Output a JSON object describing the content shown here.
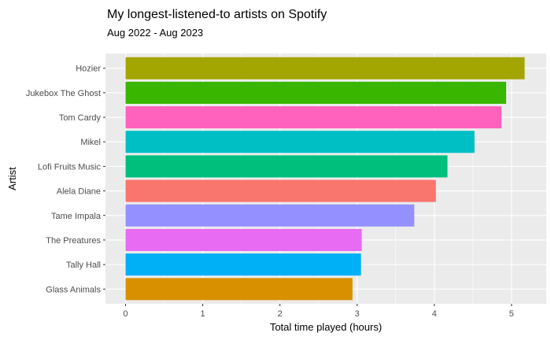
{
  "chart_data": {
    "type": "bar",
    "orientation": "horizontal",
    "title": "My longest-listened-to artists on Spotify",
    "subtitle": "Aug 2022 - Aug 2023",
    "xlabel": "Total time played (hours)",
    "ylabel": "Artist",
    "xlim": [
      -0.26,
      5.45
    ],
    "xticks": [
      "0",
      "1",
      "2",
      "3",
      "4",
      "5"
    ],
    "grid": true,
    "legend": "none",
    "background": "#EBEBEB",
    "categories": [
      "Hozier",
      "Jukebox The Ghost",
      "Tom Cardy",
      "Mikel",
      "Lofi Fruits Music",
      "Alela Diane",
      "Tame Impala",
      "The Preatures",
      "Tally Hall",
      "Glass Animals"
    ],
    "values": [
      5.17,
      4.93,
      4.87,
      4.52,
      4.17,
      4.02,
      3.74,
      3.06,
      3.05,
      2.94
    ],
    "colors": [
      "#A3A500",
      "#39B600",
      "#FF62BC",
      "#00BFC4",
      "#00BF7D",
      "#F8766D",
      "#9590FF",
      "#E76BF3",
      "#00B0F6",
      "#D89000"
    ]
  }
}
